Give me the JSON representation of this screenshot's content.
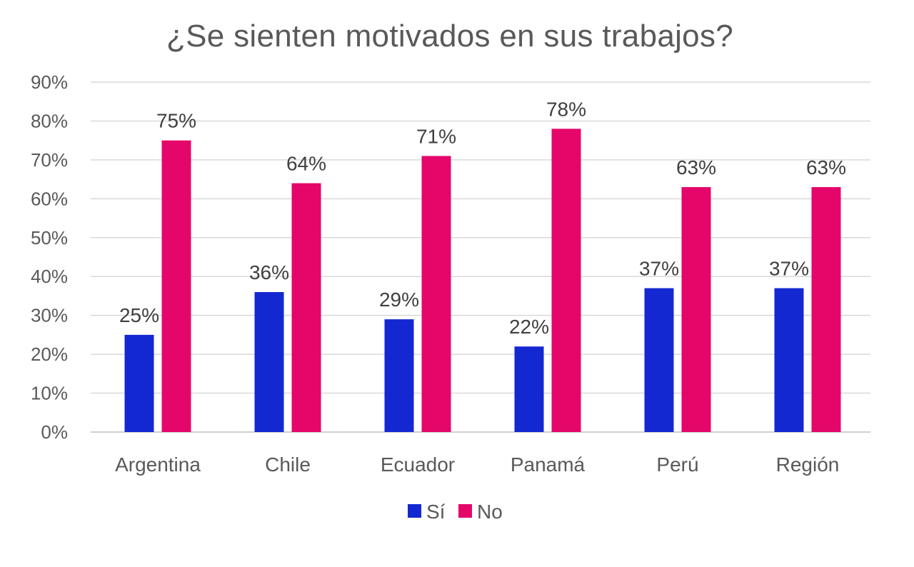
{
  "chart_data": {
    "type": "bar",
    "title": "¿Se sienten motivados en sus trabajos?",
    "categories": [
      "Argentina",
      "Chile",
      "Ecuador",
      "Panamá",
      "Perú",
      "Región"
    ],
    "series": [
      {
        "name": "Sí",
        "values": [
          25,
          36,
          29,
          22,
          37,
          37
        ],
        "color": "#1428d2"
      },
      {
        "name": "No",
        "values": [
          75,
          64,
          71,
          78,
          63,
          63
        ],
        "color": "#e5066a"
      }
    ],
    "data_label_suffix": "%",
    "ylim": [
      0,
      90
    ],
    "yticks": [
      "0%",
      "10%",
      "20%",
      "30%",
      "40%",
      "50%",
      "60%",
      "70%",
      "80%",
      "90%"
    ],
    "grid": true,
    "legend_position": "bottom"
  }
}
